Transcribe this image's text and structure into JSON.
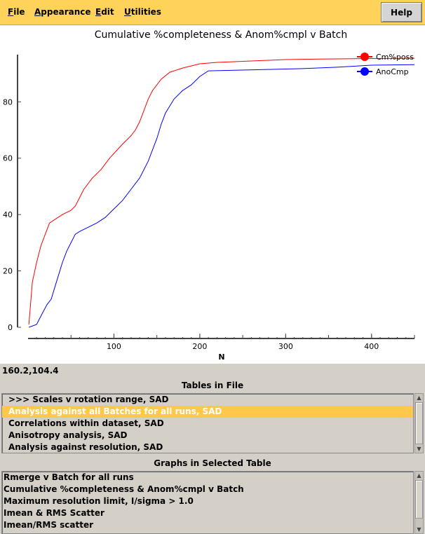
{
  "menu": {
    "file": {
      "mnemonic": "F",
      "rest": "ile"
    },
    "appearance": {
      "mnemonic": "A",
      "rest": "ppearance"
    },
    "edit": {
      "mnemonic": "E",
      "rest": "dit"
    },
    "utilities": {
      "mnemonic": "U",
      "rest": "tilities"
    },
    "help": "Help"
  },
  "colors": {
    "menubar": "#ffd35a",
    "panel": "#d4d0c8",
    "selection": "#ffc84a",
    "series1": "#ff0000",
    "series2": "#0000ff"
  },
  "chart_data": {
    "type": "line",
    "title": "Cumulative %completeness & Anom%cmpl v Batch",
    "xlabel": "N",
    "ylabel": "",
    "xlim": [
      0,
      450
    ],
    "ylim": [
      0,
      95
    ],
    "xticks": [
      100,
      200,
      300,
      400
    ],
    "yticks": [
      0,
      20,
      40,
      60,
      80
    ],
    "grid": false,
    "legend_position": "top-right",
    "series": [
      {
        "name": "Cm%poss",
        "color": "#ff0000",
        "points": [
          [
            1,
            1
          ],
          [
            5,
            16
          ],
          [
            10,
            23
          ],
          [
            15,
            29
          ],
          [
            20,
            33
          ],
          [
            25,
            37
          ],
          [
            30,
            38
          ],
          [
            40,
            40
          ],
          [
            50,
            41.5
          ],
          [
            55,
            43
          ],
          [
            60,
            46
          ],
          [
            65,
            49
          ],
          [
            75,
            53
          ],
          [
            85,
            56
          ],
          [
            95,
            60
          ],
          [
            110,
            65
          ],
          [
            120,
            68
          ],
          [
            125,
            70
          ],
          [
            130,
            73
          ],
          [
            135,
            77
          ],
          [
            140,
            81
          ],
          [
            145,
            84
          ],
          [
            155,
            88
          ],
          [
            165,
            90.5
          ],
          [
            180,
            92
          ],
          [
            200,
            93.5
          ],
          [
            220,
            94
          ],
          [
            260,
            94.5
          ],
          [
            300,
            95
          ],
          [
            340,
            95.2
          ],
          [
            380,
            95.3
          ],
          [
            420,
            95.4
          ],
          [
            450,
            95.5
          ]
        ]
      },
      {
        "name": "AnoCmp",
        "color": "#0000ff",
        "points": [
          [
            1,
            0
          ],
          [
            10,
            1
          ],
          [
            15,
            4
          ],
          [
            22,
            8
          ],
          [
            27,
            10
          ],
          [
            30,
            13
          ],
          [
            40,
            23
          ],
          [
            45,
            27
          ],
          [
            50,
            30
          ],
          [
            55,
            33
          ],
          [
            60,
            34
          ],
          [
            70,
            35.5
          ],
          [
            80,
            37
          ],
          [
            90,
            39
          ],
          [
            100,
            42
          ],
          [
            110,
            45
          ],
          [
            120,
            49
          ],
          [
            125,
            51
          ],
          [
            130,
            53
          ],
          [
            140,
            59
          ],
          [
            145,
            63
          ],
          [
            150,
            67
          ],
          [
            155,
            72
          ],
          [
            160,
            76
          ],
          [
            170,
            81
          ],
          [
            180,
            84
          ],
          [
            190,
            86
          ],
          [
            200,
            89
          ],
          [
            210,
            91
          ],
          [
            240,
            91.2
          ],
          [
            280,
            91.5
          ],
          [
            320,
            91.8
          ],
          [
            360,
            92.3
          ],
          [
            400,
            93
          ],
          [
            450,
            93.2
          ]
        ]
      }
    ]
  },
  "coordinate_readout": "160.2,104.4",
  "tables": {
    "header": "Tables in File",
    "items": [
      ">>> Scales v rotation range, SAD",
      "Analysis against all Batches for all runs, SAD",
      "Correlations within dataset, SAD",
      "Anisotropy analysis, SAD",
      "Analysis against resolution, SAD"
    ],
    "selected_index": 1
  },
  "graphs": {
    "header": "Graphs in Selected Table",
    "items": [
      "Rmerge v Batch for all runs",
      "Cumulative %completeness & Anom%cmpl v Batch",
      "Maximum resolution limit, I/sigma >   1.0",
      "Imean & RMS Scatter",
      "Imean/RMS scatter"
    ]
  }
}
